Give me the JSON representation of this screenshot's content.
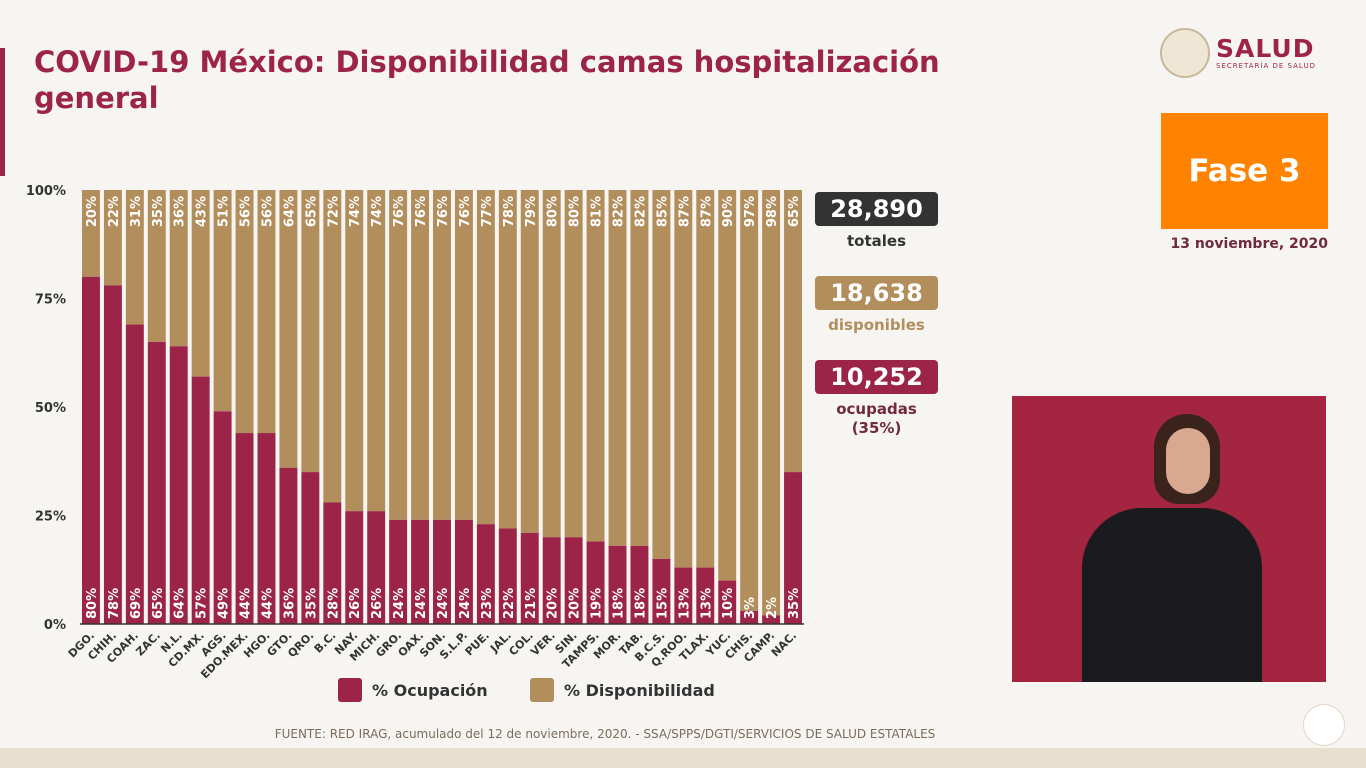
{
  "title": "COVID-19 México: Disponibilidad camas hospitalización general",
  "logo": {
    "main": "SALUD",
    "sub": "SECRETARÍA DE SALUD"
  },
  "phase": "Fase 3",
  "date": "13 noviembre, 2020",
  "stats": {
    "total": {
      "value": "28,890",
      "label": "totales"
    },
    "available": {
      "value": "18,638",
      "label": "disponibles"
    },
    "occupied": {
      "value": "10,252",
      "label": "ocupadas",
      "pct": "(35%)"
    }
  },
  "footer": "FUENTE: RED IRAG, acumulado del 12 de noviembre, 2020. -  SSA/SPPS/DGTI/SERVICIOS DE SALUD ESTATALES",
  "colors": {
    "ocupacion": "#9d2449",
    "disponibilidad": "#b38e5d",
    "total": "#333333",
    "phase": "#ff8200"
  },
  "chart_data": {
    "type": "bar",
    "stacked": true,
    "percent": true,
    "categories": [
      "DGO.",
      "CHIH.",
      "COAH.",
      "ZAC.",
      "N.L.",
      "CD.MX.",
      "AGS.",
      "EDO.MEX.",
      "HGO.",
      "GTO.",
      "QRO.",
      "B.C.",
      "NAY.",
      "MICH.",
      "GRO.",
      "OAX.",
      "SON.",
      "S.L.P.",
      "PUE.",
      "JAL.",
      "COL.",
      "VER.",
      "SIN.",
      "TAMPS.",
      "MOR.",
      "TAB.",
      "B.C.S.",
      "Q.ROO.",
      "TLAX.",
      "YUC.",
      "CHIS.",
      "CAMP.",
      "NAC."
    ],
    "series": [
      {
        "name": "% Ocupación",
        "values": [
          80,
          78,
          69,
          65,
          64,
          57,
          49,
          44,
          44,
          36,
          35,
          28,
          26,
          26,
          24,
          24,
          24,
          24,
          23,
          22,
          21,
          20,
          20,
          19,
          18,
          18,
          15,
          13,
          13,
          10,
          3,
          2,
          35
        ]
      },
      {
        "name": "% Disponibilidad",
        "values": [
          20,
          22,
          31,
          35,
          36,
          43,
          51,
          56,
          56,
          64,
          65,
          72,
          74,
          74,
          76,
          76,
          76,
          76,
          77,
          78,
          79,
          80,
          80,
          81,
          82,
          82,
          85,
          87,
          87,
          90,
          97,
          98,
          65
        ]
      }
    ],
    "yticks": [
      "0%",
      "25%",
      "50%",
      "75%",
      "100%"
    ],
    "ylim": [
      0,
      100
    ],
    "legend": "bottom"
  }
}
